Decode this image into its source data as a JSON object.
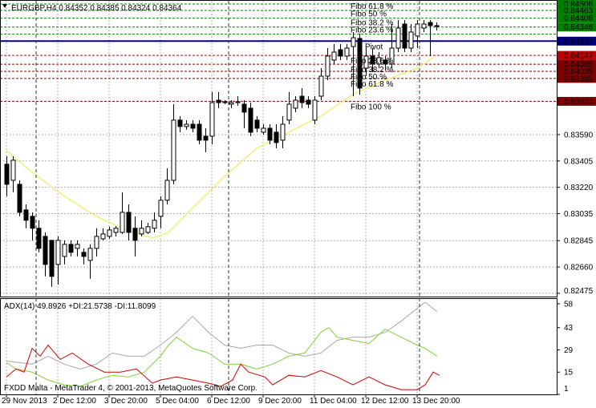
{
  "chart_data": [
    {
      "type": "candlestick",
      "symbol": "EURGBP,H4",
      "quote": [
        0.84352,
        0.84385,
        0.84324,
        0.84364
      ],
      "open": [
        0.83382,
        0.83269,
        0.83241,
        0.83061,
        0.83016,
        0.82932,
        0.82875,
        0.82847,
        0.82678,
        0.82734,
        0.82819,
        0.82791,
        0.82763,
        0.82706,
        0.82791,
        0.82858,
        0.82875,
        0.82903,
        0.82903,
        0.83044,
        0.82932,
        0.82892,
        0.82903,
        0.82932,
        0.83016,
        0.83129,
        0.83269,
        0.83692,
        0.83647,
        0.83663,
        0.83663,
        0.83579,
        0.83579,
        0.83832,
        0.83815,
        0.83804,
        0.83815,
        0.83804,
        0.83776,
        0.83692,
        0.83607,
        0.83635,
        0.83607,
        0.83551,
        0.83692,
        0.83776,
        0.8386,
        0.83832,
        0.83692,
        0.8386,
        0.84001,
        0.84114,
        0.84187,
        0.84142,
        0.84209,
        0.84266,
        0.84057,
        0.84142,
        0.84086,
        0.84114,
        0.84086,
        0.84198,
        0.84367,
        0.84198,
        0.84283,
        0.84339,
        0.84378,
        0.84356
      ],
      "high": [
        0.83438,
        0.83438,
        0.83269,
        0.831,
        0.83044,
        0.82988,
        0.82903,
        0.82847,
        0.82875,
        0.82847,
        0.82847,
        0.82847,
        0.82791,
        0.82819,
        0.82932,
        0.82932,
        0.82943,
        0.82948,
        0.83185,
        0.831,
        0.83016,
        0.82988,
        0.82971,
        0.83044,
        0.83157,
        0.83354,
        0.83804,
        0.8372,
        0.83692,
        0.83692,
        0.83692,
        0.83635,
        0.83889,
        0.83889,
        0.83832,
        0.83832,
        0.8386,
        0.83832,
        0.83815,
        0.8372,
        0.83663,
        0.83663,
        0.83663,
        0.8372,
        0.83889,
        0.8386,
        0.83917,
        0.8386,
        0.8386,
        0.84057,
        0.84198,
        0.84226,
        0.84226,
        0.84226,
        0.84311,
        0.843,
        0.84198,
        0.84198,
        0.8417,
        0.84142,
        0.84367,
        0.84395,
        0.84395,
        0.84367,
        0.84395,
        0.84395,
        0.84395,
        0.84378
      ],
      "low": [
        0.83157,
        0.83185,
        0.83016,
        0.82932,
        0.82847,
        0.82763,
        0.82594,
        0.8252,
        0.82537,
        0.82678,
        0.82734,
        0.82734,
        0.82678,
        0.82577,
        0.82734,
        0.82847,
        0.82858,
        0.82875,
        0.82892,
        0.82847,
        0.82734,
        0.82875,
        0.82892,
        0.82903,
        0.82932,
        0.831,
        0.83241,
        0.83607,
        0.83624,
        0.83607,
        0.83523,
        0.83466,
        0.83523,
        0.83776,
        0.83804,
        0.83776,
        0.83793,
        0.83635,
        0.83579,
        0.83607,
        0.8359,
        0.83523,
        0.83494,
        0.83494,
        0.83663,
        0.83748,
        0.83776,
        0.83776,
        0.83663,
        0.83832,
        0.83973,
        0.84086,
        0.84114,
        0.84114,
        0.8386,
        0.83871,
        0.84001,
        0.84029,
        0.84057,
        0.84041,
        0.84057,
        0.8417,
        0.8417,
        0.8417,
        0.84198,
        0.84311,
        0.84142,
        0.84322
      ],
      "close": [
        0.83241,
        0.8341,
        0.83044,
        0.82988,
        0.82932,
        0.82791,
        0.82678,
        0.82594,
        0.82847,
        0.82819,
        0.82763,
        0.82819,
        0.82734,
        0.82791,
        0.82875,
        0.82892,
        0.8292,
        0.82932,
        0.83044,
        0.82903,
        0.82847,
        0.82932,
        0.82943,
        0.82988,
        0.83129,
        0.83269,
        0.83692,
        0.83647,
        0.83663,
        0.83635,
        0.83551,
        0.83551,
        0.83815,
        0.83815,
        0.83821,
        0.83815,
        0.83821,
        0.83748,
        0.83607,
        0.83635,
        0.83635,
        0.83551,
        0.83534,
        0.83663,
        0.83804,
        0.83832,
        0.83815,
        0.83804,
        0.83832,
        0.84001,
        0.84142,
        0.8417,
        0.84142,
        0.84198,
        0.84271,
        0.83917,
        0.84142,
        0.84086,
        0.84131,
        0.84086,
        0.84198,
        0.84339,
        0.84198,
        0.84311,
        0.84367,
        0.84367,
        0.84356,
        0.84356
      ],
      "bull_color": "#ffffff",
      "bear_color": "#000000",
      "ylim": [
        0.82452,
        0.84536
      ],
      "yticks": [
        0.82475,
        {
          "value": 0.8266,
          "label": "0.82660"
        },
        0.82845,
        0.83035,
        {
          "value": 0.8322,
          "label": "0.83220"
        },
        0.83405,
        {
          "value": 0.8359,
          "label": "0.83590"
        }
      ],
      "grid": true,
      "xticks": [
        {
          "value": 0,
          "label": "29 Nov 2013"
        },
        {
          "value": 8,
          "label": "2 Dec 12:00"
        },
        {
          "value": 16,
          "label": "3 Dec 20:00"
        },
        {
          "value": 24,
          "label": "5 Dec 04:00"
        },
        {
          "value": 32,
          "label": "6 Dec 12:00"
        },
        {
          "value": 40,
          "label": "9 Dec 20:00"
        },
        {
          "value": 48,
          "label": "11 Dec 04:00"
        },
        {
          "value": 56,
          "label": "12 Dec 12:00"
        },
        {
          "value": 64,
          "label": "13 Dec 20:00"
        }
      ],
      "moving_average": {
        "color": "#f2ee78",
        "x": [
          0,
          4,
          9,
          14,
          19,
          22.75,
          25.25,
          29,
          34,
          39,
          44,
          49,
          54,
          59,
          64,
          66.5
        ],
        "values": [
          0.83478,
          0.83326,
          0.83157,
          0.83016,
          0.82914,
          0.82864,
          0.82903,
          0.83072,
          0.83297,
          0.83494,
          0.83607,
          0.8372,
          0.83872,
          0.83973,
          0.84057,
          0.84131
        ]
      },
      "levels": [
        {
          "value": 0.84508,
          "color": "#008000"
        },
        {
          "value": 0.84463,
          "label": "Fibo 61.8 %",
          "color": "#008000"
        },
        {
          "value": 0.84408,
          "label": "Fibo 50 %",
          "color": "#008000"
        },
        {
          "value": 0.84346,
          "label": "Fibo 38.2 %",
          "color": "#008000"
        },
        {
          "value": 0.84296,
          "label": "Fibo 23.6 %",
          "color": "#008000",
          "axis_label": false
        },
        {
          "value": 0.84247,
          "label": "Pivot",
          "color": "#000080",
          "style": "solid"
        },
        {
          "value": 0.84147,
          "label": "Fibo 23.6 %",
          "color": "#c00000"
        },
        {
          "value": 0.84085,
          "label": "Fibo 38.2 %",
          "color": "#800000"
        },
        {
          "value": 0.84035,
          "label": "Fibo 50 %",
          "color": "#800000"
        },
        {
          "value": 0.83985,
          "label": "Fibo 61.8 %",
          "color": "#800000"
        },
        {
          "value": 0.83824,
          "label": "Fibo 100 %",
          "color": "#800000"
        }
      ]
    },
    {
      "type": "adx",
      "ylim": [
        1,
        61
      ],
      "yticks": [
        1,
        15,
        29,
        43,
        58
      ],
      "series": [
        {
          "name": "ADX(14)",
          "last": 49.8926,
          "color": "#a8a8a8",
          "x": [
            0,
            4,
            6.5,
            9,
            11.5,
            14,
            16.5,
            19,
            21.5,
            24,
            26.5,
            29,
            31.5,
            34,
            36.5,
            39,
            41.5,
            44,
            46.5,
            49,
            51.5,
            54,
            56.5,
            59,
            61.5,
            64,
            65.25,
            67.1
          ],
          "values": [
            22,
            20,
            25,
            20,
            17,
            20,
            27,
            25,
            25,
            32,
            40,
            50,
            40,
            32,
            30,
            32,
            32,
            27,
            25,
            27,
            35,
            37,
            37,
            40,
            47,
            55,
            59,
            53
          ]
        },
        {
          "name": "+DI:",
          "last": 21.5738,
          "color": "#7fd23a",
          "x": [
            0,
            1.5,
            4,
            6.5,
            9,
            11.5,
            14,
            16.5,
            19,
            21.5,
            24,
            25.25,
            26.5,
            29,
            31.5,
            34,
            36.5,
            39,
            41.5,
            44,
            46.5,
            49,
            50.25,
            51.5,
            54,
            56.5,
            59,
            61.5,
            64,
            65.25,
            67.1
          ],
          "values": [
            21,
            17,
            15,
            10,
            7,
            6,
            10,
            13,
            12,
            15,
            25,
            32,
            37,
            30,
            27,
            20,
            20,
            17,
            20,
            25,
            27,
            40,
            43,
            37,
            35,
            33,
            42,
            37,
            32,
            30,
            25
          ]
        },
        {
          "name": "-DI:",
          "last": 11.8099,
          "color": "#d00000",
          "x": [
            0,
            1.5,
            2.75,
            4,
            5.25,
            6.5,
            8.4,
            10.25,
            12.75,
            15.25,
            17.75,
            20.25,
            22.75,
            24,
            26.5,
            29,
            31.5,
            33.4,
            35.25,
            36.5,
            37.75,
            40.25,
            41.5,
            44,
            46.5,
            49,
            51.5,
            54,
            56.5,
            59,
            61.5,
            64,
            65.25,
            66.5,
            67.5
          ],
          "values": [
            12,
            17,
            15,
            30,
            25,
            32,
            23,
            27,
            20,
            15,
            15,
            17,
            8,
            10,
            12,
            10,
            8,
            6,
            10,
            20,
            15,
            12,
            7,
            13,
            12,
            16,
            12,
            7,
            12,
            7,
            4,
            4,
            7,
            15,
            13
          ]
        }
      ]
    }
  ],
  "footer": "FXDD Malta - MetaTrader 4, © 2001-2013, MetaQuotes Software Corp."
}
